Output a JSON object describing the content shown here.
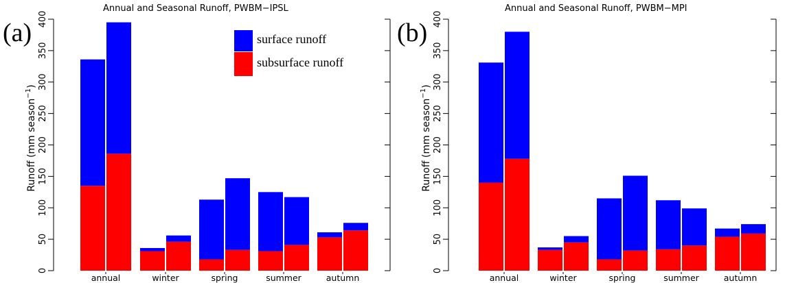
{
  "chart_data": [
    {
      "panel_label": "(a)",
      "title": "Annual and Seasonal Runoff, PWBM−IPSL",
      "type": "bar",
      "stacked": true,
      "ylabel": "Runoff (mm season",
      "ylabel_sup": "−1",
      "ylabel_close": ")",
      "ylim": [
        0,
        400
      ],
      "yticks": [
        "0",
        "50",
        "100",
        "150",
        "200",
        "250",
        "300",
        "350",
        "400"
      ],
      "categories": [
        "annual",
        "winter",
        "spring",
        "summer",
        "autumn"
      ],
      "bars_per_category": 2,
      "series": [
        {
          "name": "subsurface runoff",
          "color": "#ff0000",
          "values": [
            [
              135,
              186
            ],
            [
              31,
              46
            ],
            [
              18,
              33
            ],
            [
              31,
              41
            ],
            [
              53,
              64
            ]
          ]
        },
        {
          "name": "surface runoff",
          "color": "#0000ff",
          "values": [
            [
              201,
              209
            ],
            [
              5,
              10
            ],
            [
              95,
              114
            ],
            [
              94,
              76
            ],
            [
              8,
              12
            ]
          ]
        }
      ],
      "legend": [
        "surface runoff",
        "subsurface runoff"
      ]
    },
    {
      "panel_label": "(b)",
      "title": "Annual and Seasonal Runoff, PWBM−MPI",
      "type": "bar",
      "stacked": true,
      "ylabel": "Runoff (mm season",
      "ylabel_sup": "−1",
      "ylabel_close": ")",
      "ylim": [
        0,
        400
      ],
      "yticks": [
        "0",
        "50",
        "100",
        "150",
        "200",
        "250",
        "300",
        "350",
        "400"
      ],
      "categories": [
        "annual",
        "winter",
        "spring",
        "summer",
        "autumn"
      ],
      "bars_per_category": 2,
      "series": [
        {
          "name": "subsurface runoff",
          "color": "#ff0000",
          "values": [
            [
              140,
              178
            ],
            [
              33,
              45
            ],
            [
              18,
              32
            ],
            [
              34,
              40
            ],
            [
              54,
              59
            ]
          ]
        },
        {
          "name": "surface runoff",
          "color": "#0000ff",
          "values": [
            [
              191,
              202
            ],
            [
              4,
              10
            ],
            [
              97,
              119
            ],
            [
              78,
              59
            ],
            [
              13,
              15
            ]
          ]
        }
      ]
    }
  ]
}
